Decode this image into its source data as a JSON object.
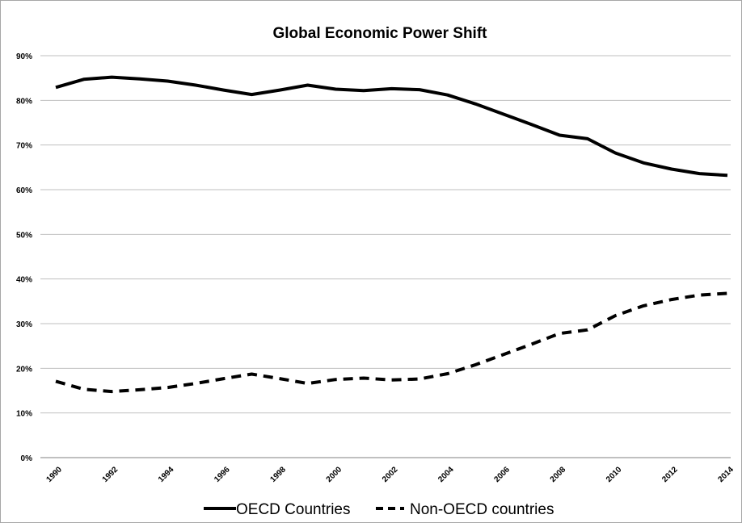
{
  "chart_data": {
    "type": "line",
    "title": "Global  Economic Power Shift",
    "xlabel": "",
    "ylabel": "",
    "ylim": [
      0,
      90
    ],
    "yticks": [
      "0%",
      "10%",
      "20%",
      "30%",
      "40%",
      "50%",
      "60%",
      "70%",
      "80%",
      "90%"
    ],
    "x": [
      1990,
      1991,
      1992,
      1993,
      1994,
      1995,
      1996,
      1997,
      1998,
      1999,
      2000,
      2001,
      2002,
      2003,
      2004,
      2005,
      2006,
      2007,
      2008,
      2009,
      2010,
      2011,
      2012,
      2013,
      2014
    ],
    "xticks": [
      "1990",
      "1992",
      "1994",
      "1996",
      "1998",
      "2000",
      "2002",
      "2004",
      "2006",
      "2008",
      "2010",
      "2012",
      "2014"
    ],
    "grid": true,
    "legend_position": "bottom",
    "series": [
      {
        "name": "OECD Countries",
        "style": "solid",
        "color": "#000000",
        "values": [
          82.9,
          84.7,
          85.2,
          84.8,
          84.3,
          83.4,
          82.3,
          81.3,
          82.3,
          83.4,
          82.5,
          82.2,
          82.6,
          82.4,
          81.2,
          79.2,
          76.9,
          74.6,
          72.2,
          71.4,
          68.2,
          66.0,
          64.6,
          63.6,
          63.2
        ]
      },
      {
        "name": "Non-OECD countries",
        "style": "dashed",
        "color": "#000000",
        "values": [
          17.1,
          15.3,
          14.8,
          15.2,
          15.7,
          16.6,
          17.7,
          18.7,
          17.7,
          16.6,
          17.5,
          17.8,
          17.4,
          17.6,
          18.8,
          20.8,
          23.1,
          25.4,
          27.8,
          28.6,
          31.8,
          34.0,
          35.4,
          36.4,
          36.8
        ]
      }
    ]
  }
}
